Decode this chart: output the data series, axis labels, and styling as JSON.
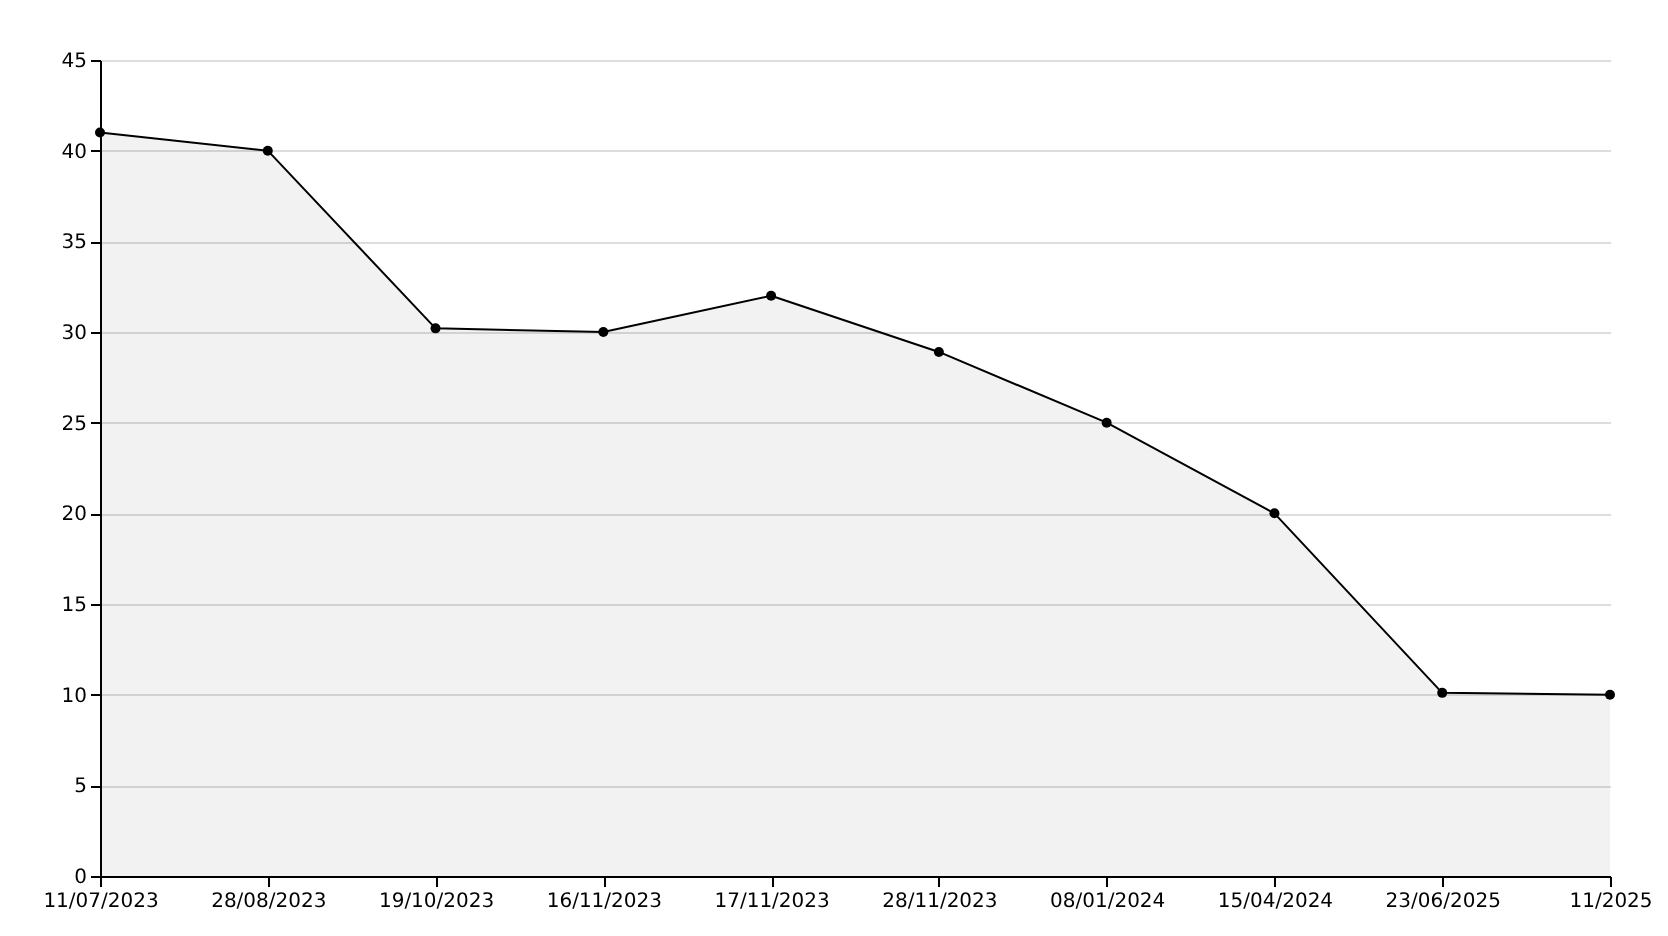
{
  "chart_data": {
    "type": "area",
    "categories": [
      "11/07/2023",
      "28/08/2023",
      "19/10/2023",
      "16/11/2023",
      "17/11/2023",
      "28/11/2023",
      "08/01/2024",
      "15/04/2024",
      "23/06/2025",
      "11/2025"
    ],
    "series": [
      {
        "color": "#000000",
        "values": [
          41,
          40,
          30.2,
          30,
          32,
          28.9,
          25,
          20,
          10.1,
          10
        ]
      }
    ],
    "ylim": [
      0,
      45
    ],
    "yticks": [
      0,
      5,
      10,
      15,
      20,
      25,
      30,
      35,
      40,
      45
    ],
    "grid": "y",
    "marker": "circle",
    "line_style": "solid"
  }
}
